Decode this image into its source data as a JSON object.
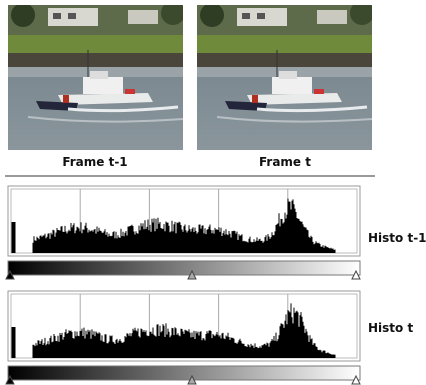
{
  "frames": [
    {
      "label": "Frame t-1"
    },
    {
      "label": "Frame t"
    }
  ],
  "histograms": [
    {
      "label": "Histo t-1"
    },
    {
      "label": "Histo t"
    }
  ]
}
